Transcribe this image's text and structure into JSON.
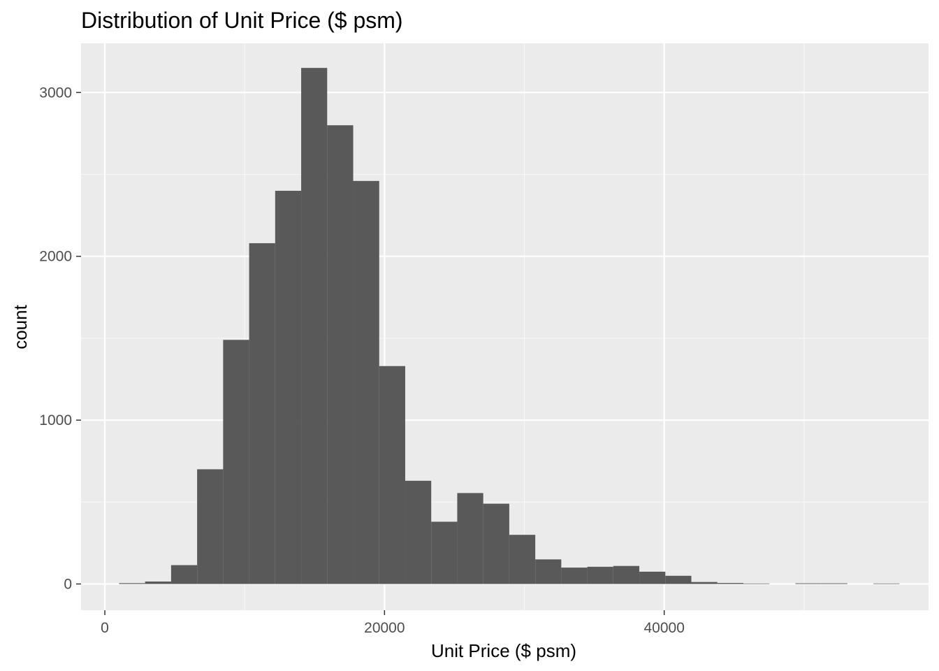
{
  "chart_data": {
    "type": "bar",
    "title": "Distribution of Unit Price ($ psm)",
    "xlabel": "Unit Price ($ psm)",
    "ylabel": "count",
    "xlim": [
      -1700,
      58900
    ],
    "ylim": [
      -160,
      3300
    ],
    "x_ticks": [
      0,
      20000,
      40000
    ],
    "x_tick_labels": [
      "0",
      "20000",
      "40000"
    ],
    "y_ticks": [
      0,
      1000,
      2000,
      3000
    ],
    "y_tick_labels": [
      "0",
      "1000",
      "2000",
      "3000"
    ],
    "x_minor_gridlines": [
      10000,
      30000,
      50000
    ],
    "y_minor_gridlines": [
      500,
      1500,
      2500
    ],
    "bin_width": 1860,
    "bins": [
      {
        "x0": 1020,
        "x1": 2880,
        "count": 5
      },
      {
        "x0": 2880,
        "x1": 4740,
        "count": 15
      },
      {
        "x0": 4740,
        "x1": 6600,
        "count": 115
      },
      {
        "x0": 6600,
        "x1": 8460,
        "count": 700
      },
      {
        "x0": 8460,
        "x1": 10320,
        "count": 1490
      },
      {
        "x0": 10320,
        "x1": 12180,
        "count": 2080
      },
      {
        "x0": 12180,
        "x1": 14040,
        "count": 2400
      },
      {
        "x0": 14040,
        "x1": 15900,
        "count": 3150
      },
      {
        "x0": 15900,
        "x1": 17760,
        "count": 2800
      },
      {
        "x0": 17760,
        "x1": 19620,
        "count": 2460
      },
      {
        "x0": 19620,
        "x1": 21480,
        "count": 1330
      },
      {
        "x0": 21480,
        "x1": 23340,
        "count": 630
      },
      {
        "x0": 23340,
        "x1": 25200,
        "count": 380
      },
      {
        "x0": 25200,
        "x1": 27060,
        "count": 555
      },
      {
        "x0": 27060,
        "x1": 28920,
        "count": 490
      },
      {
        "x0": 28920,
        "x1": 30780,
        "count": 300
      },
      {
        "x0": 30780,
        "x1": 32640,
        "count": 150
      },
      {
        "x0": 32640,
        "x1": 34500,
        "count": 100
      },
      {
        "x0": 34500,
        "x1": 36360,
        "count": 105
      },
      {
        "x0": 36360,
        "x1": 38220,
        "count": 110
      },
      {
        "x0": 38220,
        "x1": 40080,
        "count": 75
      },
      {
        "x0": 40080,
        "x1": 41940,
        "count": 50
      },
      {
        "x0": 41940,
        "x1": 43800,
        "count": 12
      },
      {
        "x0": 43800,
        "x1": 45660,
        "count": 6
      },
      {
        "x0": 45660,
        "x1": 47520,
        "count": 3
      },
      {
        "x0": 49380,
        "x1": 51240,
        "count": 4
      },
      {
        "x0": 51240,
        "x1": 53100,
        "count": 4
      },
      {
        "x0": 54960,
        "x1": 56820,
        "count": 3
      }
    ],
    "grid": true,
    "colors": {
      "bar_fill": "#595959",
      "panel_background": "#ebebeb",
      "grid_major": "#ffffff",
      "grid_minor": "#f7f7f7",
      "tick_label": "#4d4d4d",
      "tick_mark": "#333333",
      "text": "#000000"
    }
  }
}
